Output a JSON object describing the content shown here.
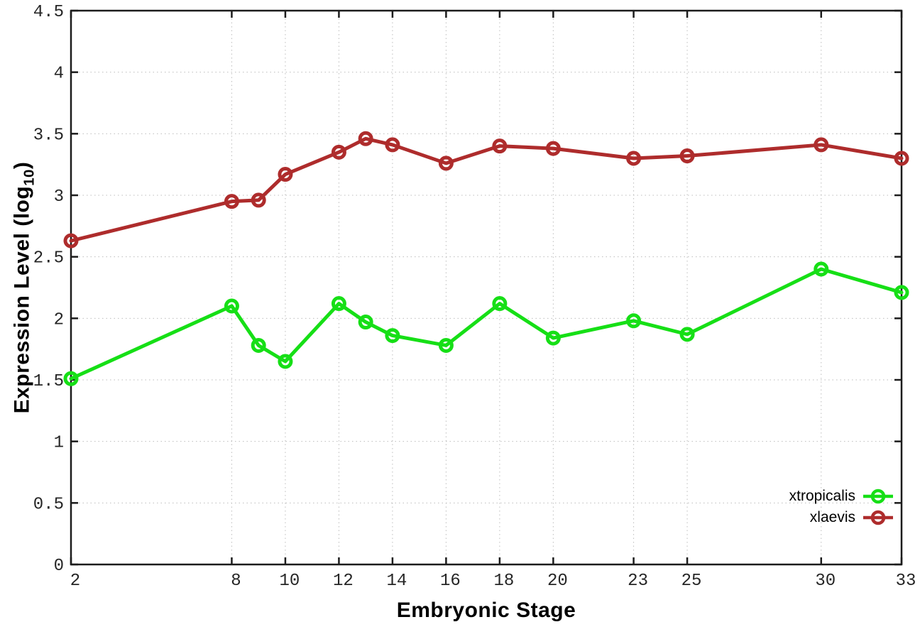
{
  "chart_data": {
    "type": "line",
    "xlabel": "Embryonic Stage",
    "ylabel": {
      "pre": "Expression Level (log",
      "sub": "10",
      "post": ")"
    },
    "x": [
      2,
      8,
      9,
      10,
      12,
      13,
      14,
      16,
      18,
      20,
      23,
      25,
      30,
      33
    ],
    "xticks": [
      2,
      8,
      10,
      12,
      14,
      16,
      18,
      20,
      23,
      25,
      30,
      33
    ],
    "yticks": [
      0,
      0.5,
      1,
      1.5,
      2,
      2.5,
      3,
      3.5,
      4,
      4.5
    ],
    "ytick_labels": [
      "0",
      "0.5",
      "1",
      "1.5",
      "2",
      "2.5",
      "3",
      "3.5",
      "4",
      "4.5"
    ],
    "xlim": [
      2,
      33
    ],
    "ylim": [
      0,
      4.5
    ],
    "grid": true,
    "legend_position": "inside-bottom-right",
    "series": [
      {
        "name": "xtropicalis",
        "color": "#16df16",
        "values": [
          1.51,
          2.1,
          1.78,
          1.65,
          2.12,
          1.97,
          1.86,
          1.78,
          2.12,
          1.84,
          1.98,
          1.87,
          2.4,
          2.21
        ]
      },
      {
        "name": "xlaevis",
        "color": "#ae2c2c",
        "values": [
          2.63,
          2.95,
          2.96,
          3.17,
          3.35,
          3.46,
          3.41,
          3.26,
          3.4,
          3.38,
          3.3,
          3.32,
          3.41,
          3.3
        ]
      }
    ],
    "style": {
      "axis_color": "#1c1c1c",
      "tick_text_color": "#262626",
      "grid_color": "#bdbdbd",
      "line_width": 5,
      "marker_radius": 8,
      "marker_stroke": 5
    }
  }
}
